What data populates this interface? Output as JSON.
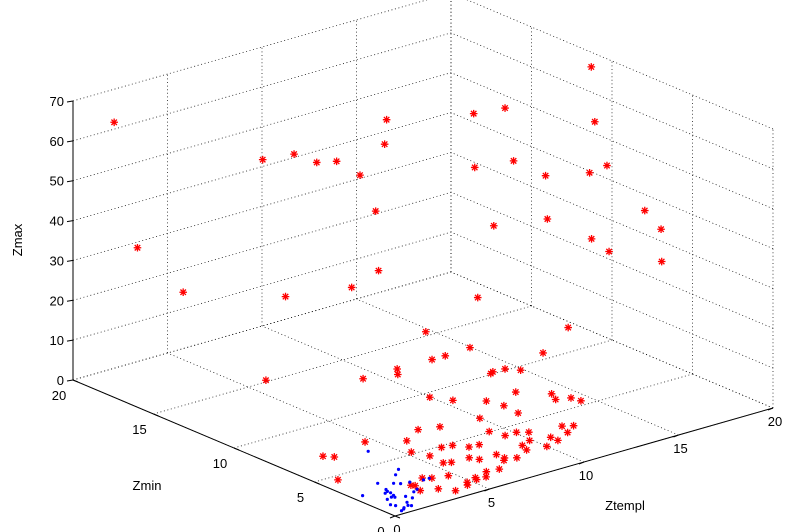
{
  "chart_data": {
    "type": "scatter",
    "projection": "3d",
    "grid": true,
    "title": "",
    "axes": {
      "x": {
        "label": "Ztempl",
        "range": [
          0,
          20
        ],
        "ticks": [
          0,
          5,
          10,
          15,
          20
        ]
      },
      "y": {
        "label": "Zmin",
        "range": [
          0,
          20
        ],
        "ticks": [
          0,
          5,
          10,
          15,
          20
        ]
      },
      "z": {
        "label": "Zmax",
        "range": [
          0,
          70
        ],
        "ticks": [
          0,
          10,
          20,
          30,
          40,
          50,
          60,
          70
        ]
      }
    },
    "tick_labels": {
      "x": [
        "0",
        "5",
        "10",
        "15",
        "20"
      ],
      "y": [
        "0",
        "5",
        "10",
        "15",
        "20"
      ],
      "z": [
        "0",
        "10",
        "20",
        "30",
        "40",
        "50",
        "60",
        "70"
      ]
    },
    "series": [
      {
        "marker": "star",
        "color": "#ff0000",
        "points": [
          [
            3.1,
            8.5,
            70
          ],
          [
            8.5,
            10.5,
            70
          ],
          [
            2.2,
            10.8,
            68
          ],
          [
            4.2,
            11.2,
            66
          ],
          [
            5.6,
            10.2,
            64
          ],
          [
            5.9,
            9.1,
            62
          ],
          [
            4.6,
            6.6,
            59
          ],
          [
            7.8,
            9.8,
            66
          ],
          [
            9.5,
            6.2,
            64
          ],
          [
            12,
            9.2,
            69
          ],
          [
            14,
            9.6,
            67
          ],
          [
            13.6,
            8.6,
            56
          ],
          [
            15.9,
            5.5,
            57
          ],
          [
            17.3,
            7.9,
            62
          ],
          [
            19.5,
            10.7,
            68
          ],
          [
            14.1,
            7.2,
            54
          ],
          [
            16.6,
            7.4,
            51
          ],
          [
            11.7,
            7.6,
            44
          ],
          [
            13.6,
            6.5,
            45
          ],
          [
            15,
            5.4,
            40
          ],
          [
            17.9,
            5.5,
            43
          ],
          [
            15.5,
            4.9,
            37
          ],
          [
            18.2,
            4.8,
            31
          ],
          [
            19.7,
            6.6,
            34
          ],
          [
            0.9,
            18.5,
            66
          ],
          [
            0.6,
            16.7,
            38
          ],
          [
            1.4,
            14.8,
            29
          ],
          [
            4.6,
            12.2,
            28
          ],
          [
            2.2,
            10.6,
            13
          ],
          [
            3.5,
            6.8,
            41
          ],
          [
            2.4,
            4.8,
            23
          ],
          [
            6.2,
            8.3,
            39
          ],
          [
            6.4,
            5.6,
            28
          ],
          [
            4.8,
            5.5,
            21
          ],
          [
            6.9,
            5.8,
            20
          ],
          [
            10,
            6.6,
            30
          ],
          [
            7.8,
            4.5,
            24
          ],
          [
            8.5,
            3.9,
            18
          ],
          [
            9.2,
            3.3,
            13
          ],
          [
            10.9,
            3.6,
            20
          ],
          [
            12.4,
            3.8,
            24
          ],
          [
            10.8,
            2.7,
            10
          ],
          [
            8.7,
            1.9,
            6
          ],
          [
            9.6,
            1.6,
            4
          ],
          [
            11.1,
            2.1,
            11
          ],
          [
            10.2,
            1.6,
            6
          ],
          [
            8.1,
            1.6,
            4
          ],
          [
            6.9,
            1.8,
            3
          ],
          [
            6.5,
            2.4,
            5
          ],
          [
            7.2,
            2.6,
            7
          ],
          [
            5.8,
            2.2,
            3
          ],
          [
            5.2,
            2.6,
            2
          ],
          [
            4.6,
            2.4,
            3
          ],
          [
            6.3,
            3.8,
            14
          ],
          [
            4.2,
            4.2,
            6
          ],
          [
            3.1,
            5.5,
            5
          ],
          [
            1.9,
            6,
            2
          ],
          [
            1.3,
            6,
            3
          ],
          [
            0.9,
            4.6,
            0
          ],
          [
            2.6,
            1.8,
            1
          ],
          [
            3.4,
            1.7,
            2
          ],
          [
            4.1,
            1.5,
            2
          ],
          [
            4.5,
            0.8,
            1
          ],
          [
            5,
            0.8,
            1
          ],
          [
            3.8,
            0.7,
            0
          ],
          [
            4.6,
            0.9,
            0
          ],
          [
            5.1,
            1,
            1
          ],
          [
            5.5,
            0.8,
            1
          ],
          [
            6.2,
            0.8,
            2
          ],
          [
            7.3,
            1,
            3
          ],
          [
            7.9,
            1.1,
            4
          ],
          [
            8.4,
            1.5,
            5
          ],
          [
            8.8,
            0.9,
            4
          ],
          [
            9.3,
            0.8,
            5
          ],
          [
            9.9,
            0.9,
            6
          ],
          [
            10.3,
            1,
            7
          ],
          [
            8.9,
            2.8,
            9
          ],
          [
            7.7,
            2.2,
            6
          ],
          [
            6,
            1.8,
            3
          ],
          [
            6.9,
            1.3,
            3
          ],
          [
            8.3,
            2.2,
            6
          ],
          [
            7.3,
            3.3,
            9
          ],
          [
            5.1,
            3.1,
            5
          ],
          [
            5.7,
            3.9,
            8
          ],
          [
            6.7,
            1.1,
            3
          ],
          [
            7.9,
            3.6,
            12
          ],
          [
            8.9,
            4.5,
            16
          ],
          [
            6.1,
            5,
            13
          ],
          [
            9.4,
            4.2,
            17
          ],
          [
            5.6,
            0.9,
            2
          ],
          [
            3.4,
            1.3,
            0
          ],
          [
            2.7,
            1.6,
            0
          ],
          [
            3.4,
            2.3,
            1
          ],
          [
            2.8,
            2.3,
            0
          ],
          [
            6.3,
            2.8,
            4
          ],
          [
            5.6,
            3,
            5
          ],
          [
            4.4,
            3,
            4
          ],
          [
            4.1,
            3.8,
            4
          ],
          [
            4.8,
            4.2,
            8
          ],
          [
            8.4,
            3.1,
            11
          ],
          [
            10.5,
            2.6,
            12
          ],
          [
            9.8,
            3.7,
            17
          ],
          [
            11.2,
            1.6,
            11
          ],
          [
            7.6,
            5.8,
            20
          ],
          [
            5.6,
            6.4,
            17
          ]
        ]
      },
      {
        "marker": "dot",
        "color": "#0000ff",
        "points": [
          [
            0.5,
            2.6,
            0
          ],
          [
            1.2,
            0.6,
            0
          ],
          [
            0.8,
            0.4,
            0
          ],
          [
            0.6,
            0.3,
            0
          ],
          [
            0.8,
            0.9,
            0
          ],
          [
            0.7,
            1.1,
            0
          ],
          [
            1.5,
            1.1,
            1
          ],
          [
            1.1,
            1.3,
            1
          ],
          [
            1.2,
            1.5,
            1
          ],
          [
            1.3,
            2,
            1
          ],
          [
            1.8,
            2.2,
            2
          ],
          [
            2.4,
            2.6,
            4
          ],
          [
            2.7,
            1.4,
            3
          ],
          [
            2,
            2,
            2
          ],
          [
            2.1,
            1.1,
            2
          ],
          [
            3,
            1.4,
            3
          ],
          [
            2.4,
            1.9,
            2
          ],
          [
            1.3,
            1.8,
            1
          ],
          [
            2.5,
            4.6,
            5
          ],
          [
            1,
            1.4,
            1
          ],
          [
            0.7,
            1.3,
            1
          ],
          [
            1.3,
            0.5,
            0
          ],
          [
            1.4,
            0.9,
            0
          ],
          [
            1.6,
            0.8,
            1
          ],
          [
            0.9,
            0.5,
            0
          ],
          [
            2.5,
            2.9,
            2
          ],
          [
            1.4,
            2.2,
            1
          ],
          [
            1.3,
            2.6,
            2
          ],
          [
            2.1,
            1.3,
            1
          ],
          [
            1.1,
            1.9,
            1
          ]
        ]
      }
    ]
  }
}
